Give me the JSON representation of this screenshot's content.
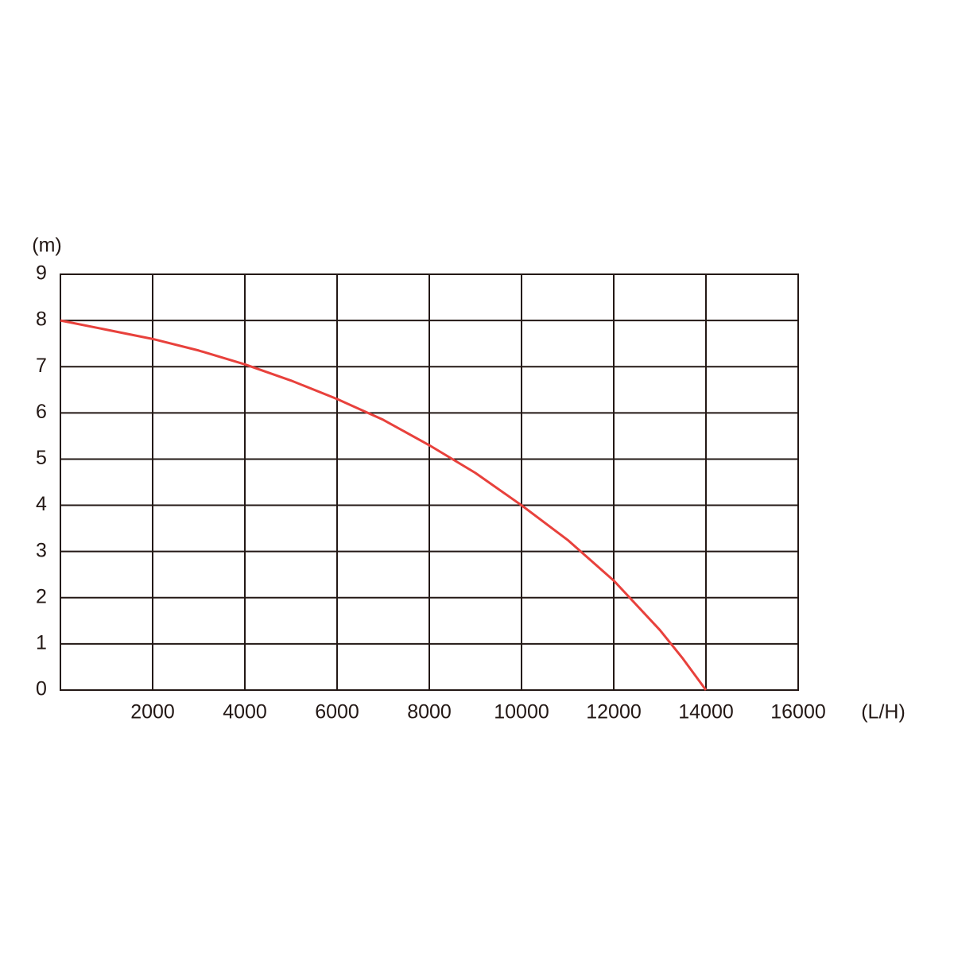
{
  "chart_data": {
    "type": "line",
    "y_label": "(m)",
    "x_label": "(L/H)",
    "x": [
      0,
      2000,
      3000,
      4000,
      5000,
      6000,
      7000,
      8000,
      9000,
      10000,
      11000,
      12000,
      13000,
      13500,
      14000
    ],
    "values": [
      8,
      7.6,
      7.35,
      7.05,
      6.7,
      6.3,
      5.85,
      5.3,
      4.7,
      4.0,
      3.25,
      2.37,
      1.3,
      0.68,
      0
    ],
    "color": "#e8413c",
    "xlim": [
      0,
      16000
    ],
    "xticks": [
      2000,
      4000,
      6000,
      8000,
      10000,
      12000,
      14000,
      16000
    ],
    "ylim": [
      0,
      9
    ],
    "yticks": [
      0,
      1,
      2,
      3,
      4,
      5,
      6,
      7,
      8,
      9
    ],
    "grid": true
  }
}
